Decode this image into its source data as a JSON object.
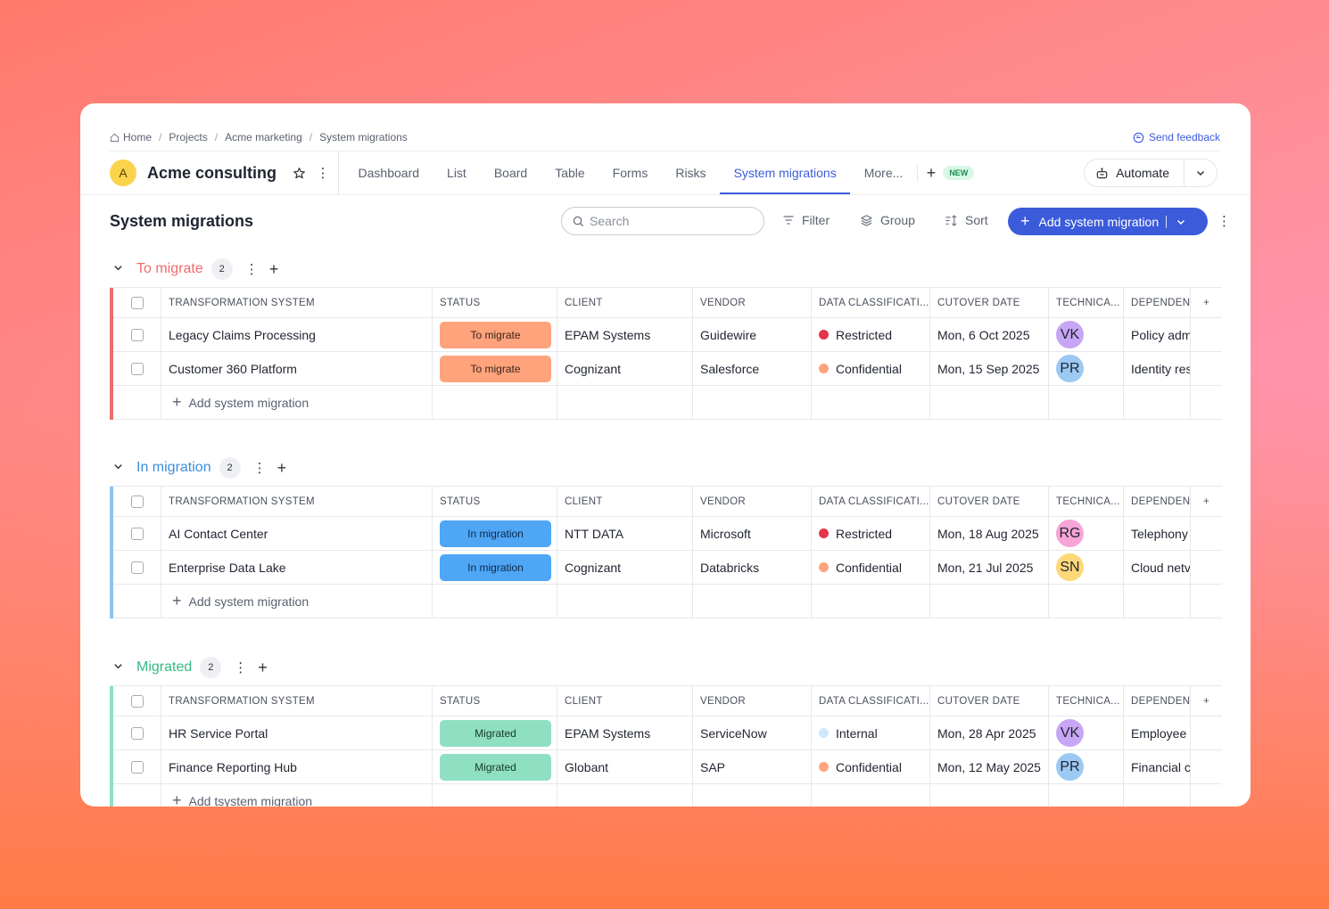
{
  "breadcrumb": [
    "Home",
    "Projects",
    "Acme marketing",
    "System migrations"
  ],
  "feedback": "Send feedback",
  "project": {
    "initial": "A",
    "name": "Acme consulting"
  },
  "tabs": [
    "Dashboard",
    "List",
    "Board",
    "Table",
    "Forms",
    "Risks",
    "System migrations",
    "More..."
  ],
  "active_tab": "System migrations",
  "new_badge": "NEW",
  "automate": "Automate",
  "page_title": "System migrations",
  "search_placeholder": "Search",
  "tools": {
    "filter": "Filter",
    "group": "Group",
    "sort": "Sort"
  },
  "add_button": "Add system migration",
  "columns": [
    "TRANSFORMATION SYSTEM",
    "STATUS",
    "CLIENT",
    "VENDOR",
    "DATA CLASSIFICATI...",
    "CUTOVER DATE",
    "TECHNICA...",
    "DEPENDENC"
  ],
  "add_row_label": "Add system migration",
  "groups": [
    {
      "name": "To migrate",
      "count": "2",
      "color": "#ef6b6b",
      "rows": [
        {
          "system": "Legacy Claims Processing",
          "status": "To migrate",
          "client": "EPAM Systems",
          "vendor": "Guidewire",
          "classification": "Restricted",
          "cutover": "Mon, 6 Oct 2025",
          "tech": "VK",
          "dependency": "Policy adm"
        },
        {
          "system": "Customer 360 Platform",
          "status": "To migrate",
          "client": "Cognizant",
          "vendor": "Salesforce",
          "classification": "Confidential",
          "cutover": "Mon, 15 Sep 2025",
          "tech": "PR",
          "dependency": "Identity res"
        }
      ]
    },
    {
      "name": "In migration",
      "count": "2",
      "color": "#3a8fd9",
      "rows": [
        {
          "system": "AI Contact Center",
          "status": "In migration",
          "client": "NTT DATA",
          "vendor": "Microsoft",
          "classification": "Restricted",
          "cutover": "Mon, 18 Aug 2025",
          "tech": "RG",
          "dependency": "Telephony"
        },
        {
          "system": "Enterprise Data Lake",
          "status": "In migration",
          "client": "Cognizant",
          "vendor": "Databricks",
          "classification": "Confidential",
          "cutover": "Mon, 21 Jul 2025",
          "tech": "SN",
          "dependency": "Cloud netv"
        }
      ]
    },
    {
      "name": "Migrated",
      "count": "2",
      "color": "#35b985",
      "rows": [
        {
          "system": "HR Service Portal",
          "status": "Migrated",
          "client": "EPAM Systems",
          "vendor": "ServiceNow",
          "classification": "Internal",
          "cutover": "Mon, 28 Apr 2025",
          "tech": "VK",
          "dependency": "Employee "
        },
        {
          "system": "Finance Reporting Hub",
          "status": "Migrated",
          "client": "Globant",
          "vendor": "SAP",
          "classification": "Confidential",
          "cutover": "Mon, 12 May 2025",
          "tech": "PR",
          "dependency": "Financial c"
        }
      ]
    }
  ],
  "last_add_row_label": "Add tsystem migration",
  "status_colors": {
    "To migrate": {
      "bg": "#ffa37c",
      "fg": "#3a2418"
    },
    "In migration": {
      "bg": "#4ea6f5",
      "fg": "#0f2a4a"
    },
    "Migrated": {
      "bg": "#8fe0c2",
      "fg": "#17382c"
    }
  },
  "group_strip_colors": [
    "#ef6b6b",
    "#8ec4f5",
    "#8fe0c2"
  ],
  "classification_colors": {
    "Restricted": "#e5354a",
    "Confidential": "#ffa37c",
    "Internal": "#cfe7fb"
  },
  "avatar_colors": {
    "VK": "#c7a6f5",
    "PR": "#9cc9f3",
    "RG": "#f7a4d8",
    "SN": "#fcd878"
  }
}
